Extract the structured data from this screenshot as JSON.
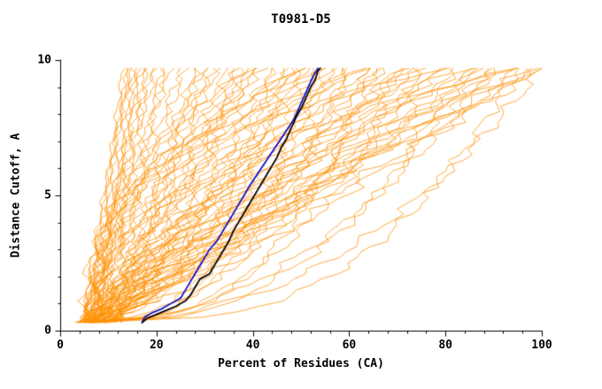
{
  "title": "T0981-D5",
  "chart_data": {
    "type": "line",
    "title": "T0981-D5",
    "xlabel": "Percent of Residues (CA)",
    "ylabel": "Distance Cutoff, A",
    "xlim": [
      0,
      100
    ],
    "ylim": [
      0,
      10
    ],
    "x_ticks": [
      0,
      20,
      40,
      60,
      80,
      100
    ],
    "y_ticks": [
      0,
      5,
      10
    ],
    "x_tick_labels": [
      "0",
      "20",
      "40",
      "60",
      "80",
      "100"
    ],
    "y_tick_labels": [
      "0",
      "5",
      "10"
    ],
    "x_minor_step": 4,
    "y_minor_step": 1,
    "grid": false,
    "legend": "none",
    "colors": {
      "ensemble": "#ff8f00",
      "model_black": "#000000",
      "model_blue": "#0000cd",
      "axis": "#000000",
      "background": "#ffffff"
    },
    "series": [
      {
        "name": "server-models-ensemble",
        "role": "background",
        "color_key": "ensemble",
        "line_width": 0.75,
        "y_range": [
          0.3,
          9.7
        ],
        "y_step": 0.2,
        "curve_params": [
          [
            5,
            13,
            0.9,
            0.6
          ],
          [
            6,
            14,
            1.1,
            0.8
          ],
          [
            4,
            14,
            0.7,
            0.7
          ],
          [
            7,
            15,
            1.0,
            0.9
          ],
          [
            5,
            15,
            1.3,
            0.7
          ],
          [
            6,
            16,
            0.8,
            1.0
          ],
          [
            8,
            16,
            1.1,
            0.8
          ],
          [
            5,
            17,
            0.9,
            1.1
          ],
          [
            7,
            18,
            1.2,
            0.9
          ],
          [
            6,
            18,
            0.7,
            1.2
          ],
          [
            8,
            19,
            1.0,
            1.0
          ],
          [
            5,
            20,
            1.1,
            1.3
          ],
          [
            9,
            21,
            0.8,
            1.1
          ],
          [
            6,
            22,
            1.0,
            1.2
          ],
          [
            7,
            23,
            1.2,
            1.4
          ],
          [
            5,
            25,
            0.9,
            1.5
          ],
          [
            8,
            26,
            1.1,
            1.3
          ],
          [
            6,
            28,
            0.7,
            1.6
          ],
          [
            9,
            29,
            1.0,
            1.4
          ],
          [
            5,
            30,
            1.2,
            1.5
          ],
          [
            7,
            31,
            0.8,
            1.7
          ],
          [
            10,
            32,
            1.0,
            1.5
          ],
          [
            6,
            33,
            1.3,
            1.6
          ],
          [
            8,
            35,
            0.9,
            1.8
          ],
          [
            5,
            36,
            1.1,
            1.6
          ],
          [
            9,
            37,
            0.7,
            1.9
          ],
          [
            7,
            38,
            1.0,
            1.7
          ],
          [
            11,
            39,
            1.2,
            1.5
          ],
          [
            6,
            40,
            0.8,
            2.0
          ],
          [
            8,
            41,
            1.0,
            1.8
          ],
          [
            5,
            42,
            1.3,
            1.6
          ],
          [
            10,
            44,
            0.9,
            1.9
          ],
          [
            7,
            45,
            1.1,
            1.7
          ],
          [
            6,
            46,
            0.7,
            2.0
          ],
          [
            9,
            48,
            1.0,
            1.8
          ],
          [
            5,
            49,
            1.2,
            1.9
          ],
          [
            8,
            50,
            0.8,
            2.1
          ],
          [
            11,
            52,
            1.0,
            1.9
          ],
          [
            6,
            53,
            1.1,
            2.0
          ],
          [
            7,
            55,
            0.9,
            2.1
          ],
          [
            10,
            56,
            1.2,
            1.8
          ],
          [
            5,
            58,
            0.8,
            2.2
          ],
          [
            8,
            59,
            1.0,
            2.0
          ],
          [
            6,
            60,
            1.1,
            2.1
          ],
          [
            9,
            62,
            0.9,
            2.2
          ],
          [
            5,
            64,
            1.1,
            2.0
          ],
          [
            7,
            65,
            0.7,
            2.3
          ],
          [
            10,
            67,
            1.0,
            2.1
          ],
          [
            6,
            68,
            1.2,
            2.2
          ],
          [
            8,
            70,
            0.8,
            2.4
          ],
          [
            5,
            72,
            1.0,
            2.2
          ],
          [
            11,
            73,
            1.1,
            2.3
          ],
          [
            7,
            75,
            0.9,
            2.4
          ],
          [
            6,
            76,
            1.2,
            2.2
          ],
          [
            9,
            78,
            0.8,
            2.5
          ],
          [
            5,
            80,
            1.0,
            2.3
          ],
          [
            8,
            81,
            1.1,
            2.4
          ],
          [
            10,
            83,
            0.9,
            2.5
          ],
          [
            6,
            85,
            1.2,
            2.3
          ],
          [
            7,
            86,
            0.8,
            2.6
          ],
          [
            9,
            88,
            1.0,
            2.4
          ],
          [
            5,
            90,
            1.1,
            2.5
          ],
          [
            8,
            91,
            0.9,
            2.6
          ],
          [
            11,
            93,
            1.2,
            2.4
          ],
          [
            6,
            95,
            1.0,
            2.6
          ],
          [
            7,
            97,
            0.8,
            2.7
          ],
          [
            9,
            98,
            1.1,
            2.5
          ],
          [
            5,
            100,
            0.9,
            2.7
          ],
          [
            12,
            100,
            1.2,
            2.5
          ],
          [
            5,
            55,
            0.4,
            1.5
          ],
          [
            6,
            65,
            0.35,
            1.6
          ],
          [
            7,
            75,
            0.45,
            1.7
          ],
          [
            5,
            85,
            0.4,
            1.8
          ],
          [
            8,
            95,
            0.35,
            1.9
          ],
          [
            6,
            100,
            0.45,
            2.0
          ],
          [
            5,
            48,
            0.5,
            1.4
          ],
          [
            9,
            60,
            0.45,
            1.6
          ],
          [
            6,
            70,
            0.5,
            1.8
          ],
          [
            7,
            90,
            0.5,
            2.0
          ],
          [
            6,
            40,
            2.5,
            1.2
          ],
          [
            8,
            55,
            3.0,
            1.4
          ],
          [
            5,
            65,
            2.8,
            1.5
          ],
          [
            7,
            80,
            3.2,
            1.6
          ],
          [
            9,
            95,
            2.6,
            1.8
          ],
          [
            6,
            50,
            2.2,
            1.3
          ]
        ]
      },
      {
        "name": "model-blue",
        "role": "highlight",
        "color_key": "model_blue",
        "line_width": 1.6,
        "points": [
          [
            17,
            0.3
          ],
          [
            17.5,
            0.5
          ],
          [
            19,
            0.65
          ],
          [
            21,
            0.8
          ],
          [
            23,
            1.0
          ],
          [
            25,
            1.2
          ],
          [
            26,
            1.5
          ],
          [
            27,
            1.8
          ],
          [
            28,
            2.1
          ],
          [
            29,
            2.4
          ],
          [
            30,
            2.7
          ],
          [
            31,
            3.0
          ],
          [
            32.5,
            3.3
          ],
          [
            33.5,
            3.6
          ],
          [
            34.5,
            3.9
          ],
          [
            35.5,
            4.2
          ],
          [
            36.5,
            4.5
          ],
          [
            37.5,
            4.8
          ],
          [
            38.5,
            5.1
          ],
          [
            39.5,
            5.4
          ],
          [
            41,
            5.8
          ],
          [
            42.5,
            6.2
          ],
          [
            44,
            6.6
          ],
          [
            45.5,
            7.0
          ],
          [
            47,
            7.4
          ],
          [
            48.5,
            7.8
          ],
          [
            49.5,
            8.2
          ],
          [
            50.5,
            8.6
          ],
          [
            51.5,
            9.0
          ],
          [
            52.5,
            9.4
          ],
          [
            53.5,
            9.7
          ]
        ]
      },
      {
        "name": "model-black",
        "role": "highlight",
        "color_key": "model_black",
        "line_width": 1.8,
        "points": [
          [
            17,
            0.3
          ],
          [
            18,
            0.45
          ],
          [
            20,
            0.6
          ],
          [
            22,
            0.75
          ],
          [
            24,
            0.9
          ],
          [
            26,
            1.1
          ],
          [
            27,
            1.3
          ],
          [
            28,
            1.6
          ],
          [
            29,
            1.9
          ],
          [
            31,
            2.1
          ],
          [
            32,
            2.4
          ],
          [
            33,
            2.7
          ],
          [
            34,
            3.0
          ],
          [
            35,
            3.3
          ],
          [
            36,
            3.7
          ],
          [
            37,
            4.0
          ],
          [
            38,
            4.3
          ],
          [
            39,
            4.6
          ],
          [
            40,
            4.9
          ],
          [
            41,
            5.2
          ],
          [
            42,
            5.5
          ],
          [
            43,
            5.8
          ],
          [
            44,
            6.1
          ],
          [
            45,
            6.4
          ],
          [
            46,
            6.8
          ],
          [
            47,
            7.1
          ],
          [
            48,
            7.5
          ],
          [
            49,
            7.9
          ],
          [
            50,
            8.2
          ],
          [
            51,
            8.6
          ],
          [
            52,
            9.0
          ],
          [
            53,
            9.3
          ],
          [
            53.5,
            9.6
          ],
          [
            54,
            9.7
          ]
        ]
      }
    ]
  }
}
